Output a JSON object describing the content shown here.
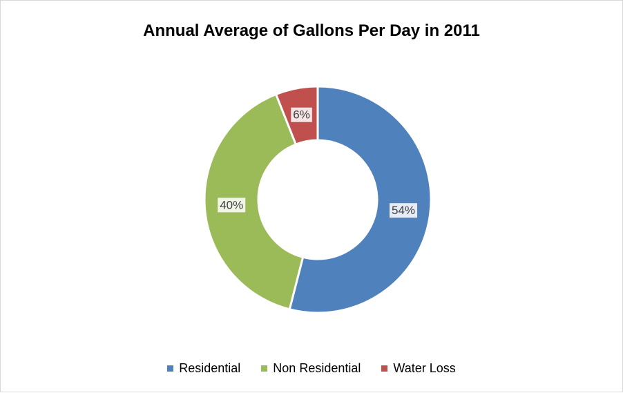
{
  "chart_data": {
    "type": "pie",
    "subtype": "doughnut",
    "title": "Annual Average of Gallons Per Day in 2011",
    "slices": [
      {
        "label": "Residential",
        "value": 54,
        "display": "54%",
        "color": "#4f81bd"
      },
      {
        "label": "Non Residential",
        "value": 40,
        "display": "40%",
        "color": "#9bbb59"
      },
      {
        "label": "Water Loss",
        "value": 6,
        "display": "6%",
        "color": "#c0504d"
      }
    ],
    "legend_position": "bottom"
  }
}
